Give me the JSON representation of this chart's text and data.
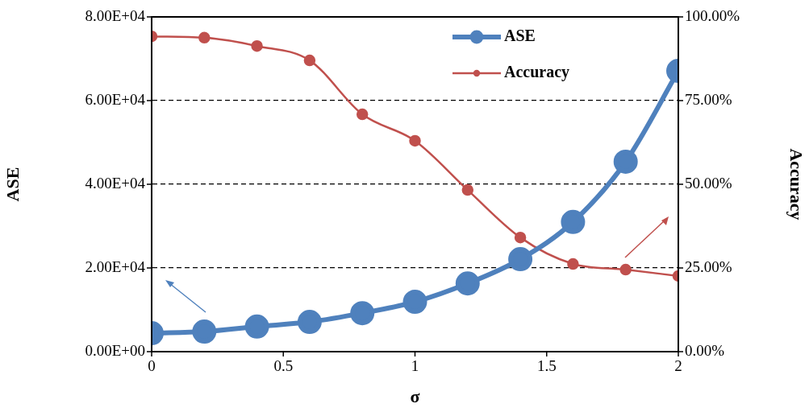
{
  "chart_data": {
    "type": "line",
    "xlabel": "σ",
    "ylabel": "ASE",
    "y2label": "Accuracy",
    "x": [
      0,
      0.2,
      0.4,
      0.6,
      0.8,
      1,
      1.2,
      1.4,
      1.6,
      1.8,
      2
    ],
    "series": [
      {
        "name": "ASE",
        "color": "#4f81bd",
        "values": [
          4400,
          4800,
          6000,
          7100,
          9200,
          11900,
          16300,
          22100,
          31000,
          45400,
          67100
        ]
      },
      {
        "name": "Accuracy",
        "color": "#c0504d",
        "axis": "y2",
        "values": [
          94.2,
          93.8,
          91.3,
          87.0,
          70.9,
          63.0,
          48.3,
          34.1,
          26.2,
          24.5,
          22.6
        ]
      }
    ],
    "xlim": [
      0,
      2
    ],
    "xticks": [
      0,
      0.5,
      1,
      1.5,
      2
    ],
    "ylim": [
      0,
      80000
    ],
    "yticks": [
      {
        "value": 0,
        "label": "0.00E+00"
      },
      {
        "value": 20000,
        "label": "2.00E+04"
      },
      {
        "value": 40000,
        "label": "4.00E+04"
      },
      {
        "value": 60000,
        "label": "6.00E+04"
      },
      {
        "value": 80000,
        "label": "8.00E+04"
      }
    ],
    "y2lim": [
      0,
      100
    ],
    "y2ticks": [
      {
        "value": 0,
        "label": "0.00%"
      },
      {
        "value": 25,
        "label": "25.00%"
      },
      {
        "value": 50,
        "label": "50.00%"
      },
      {
        "value": 75,
        "label": "75.00%"
      },
      {
        "value": 100,
        "label": "100.00%"
      }
    ],
    "grid": "y",
    "legend": "top right",
    "marker": "circle"
  }
}
